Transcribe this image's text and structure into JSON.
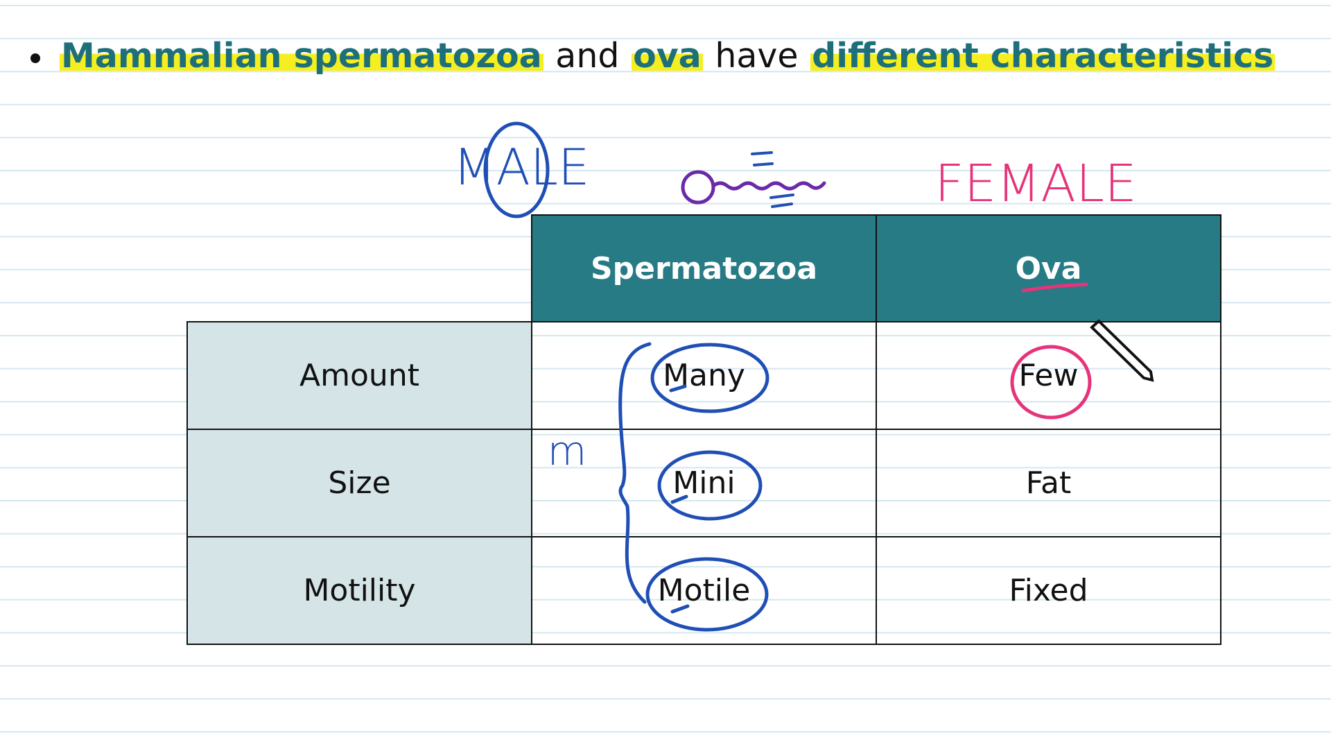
{
  "bullet": {
    "segments": [
      {
        "text": "Mammalian spermatozoa",
        "highlight": true
      },
      {
        "text": "and",
        "highlight": false
      },
      {
        "text": "ova",
        "highlight": true
      },
      {
        "text": "have",
        "highlight": false
      },
      {
        "text": "different characteristics",
        "highlight": true
      }
    ]
  },
  "annotations": {
    "male": "MALE",
    "female": "FEMALE",
    "margin_note": "m"
  },
  "table": {
    "columns": [
      "Spermatozoa",
      "Ova"
    ],
    "rows": [
      [
        "Amount",
        "Many",
        "Few"
      ],
      [
        "Size",
        "Mini",
        "Fat"
      ],
      [
        "Motility",
        "Motile",
        "Fixed"
      ]
    ]
  }
}
